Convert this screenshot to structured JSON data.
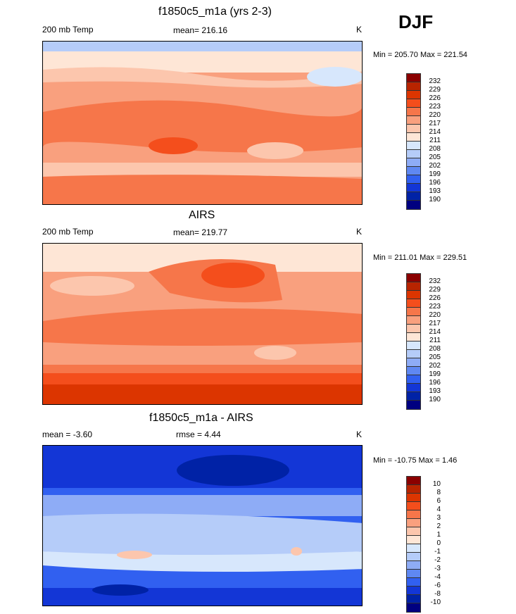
{
  "season": "DJF",
  "colorbar_colors": [
    "#8b0000",
    "#b82400",
    "#dc3500",
    "#f44e1c",
    "#f6764a",
    "#f9a07e",
    "#fcc6ad",
    "#fee6d6",
    "#d7e7fc",
    "#b5ccf9",
    "#8eacf6",
    "#5f88f2",
    "#3160f0",
    "#1336d6",
    "#0022a6",
    "#000080"
  ],
  "panels": [
    {
      "title": "f1850c5_m1a (yrs 2-3)",
      "left_label": "200 mb Temp",
      "center_label": "mean= 216.16",
      "units": "K",
      "minmax": "Min = 205.70 Max = 221.54",
      "levels": [
        "232",
        "229",
        "226",
        "223",
        "220",
        "217",
        "214",
        "211",
        "208",
        "205",
        "202",
        "199",
        "196",
        "193",
        "190"
      ]
    },
    {
      "title": "AIRS",
      "left_label": "200 mb Temp",
      "center_label": "mean= 219.77",
      "units": "K",
      "minmax": "Min = 211.01 Max = 229.51",
      "levels": [
        "232",
        "229",
        "226",
        "223",
        "220",
        "217",
        "214",
        "211",
        "208",
        "205",
        "202",
        "199",
        "196",
        "193",
        "190"
      ]
    },
    {
      "title": "f1850c5_m1a - AIRS",
      "left_label": "mean =  -3.60",
      "center_label": "rmse =   4.44",
      "units": "K",
      "minmax": "Min = -10.75 Max =   1.46",
      "levels": [
        "10",
        "8",
        "6",
        "4",
        "3",
        "2",
        "1",
        "0",
        "-1",
        "-2",
        "-3",
        "-4",
        "-6",
        "-8",
        "-10"
      ]
    }
  ]
}
